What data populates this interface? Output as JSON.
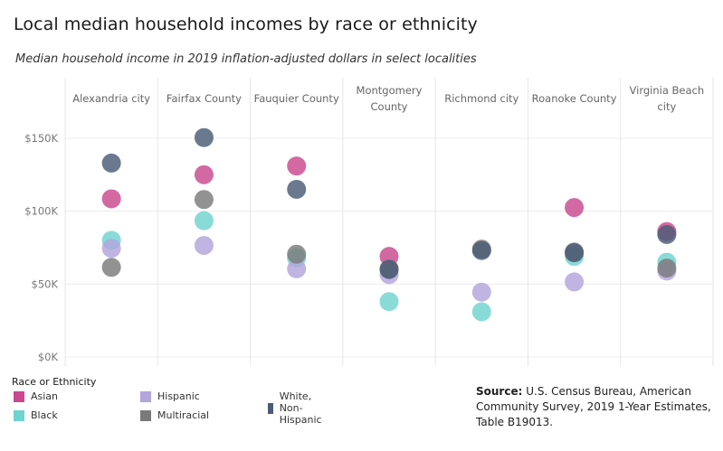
{
  "title": "Local median household incomes by race or ethnicity",
  "subtitle": "Median household income in 2019 inflation-adjusted dollars in select localities",
  "legend": {
    "title": "Race or Ethnicity",
    "items": [
      {
        "label": "Asian",
        "color": "#c9488f"
      },
      {
        "label": "Black",
        "color": "#6fd3d0"
      },
      {
        "label": "Hispanic",
        "color": "#b2a5dc"
      },
      {
        "label": "Multiracial",
        "color": "#7a7a7a"
      },
      {
        "label": "White, Non-Hispanic",
        "color": "#4b5c76"
      }
    ]
  },
  "source": {
    "label": "Source:",
    "text": "U.S. Census Bureau, American Community Survey, 2019 1-Year Estimates, Table B19013."
  },
  "chart_data": {
    "type": "scatter",
    "categories": [
      "Alexandria city",
      "Fairfax County",
      "Fauquier County",
      "Montgomery County",
      "Richmond city",
      "Roanoke County",
      "Virginia Beach city"
    ],
    "y_ticks": [
      "$0K",
      "$50K",
      "$100K",
      "$150K"
    ],
    "ylim": [
      0,
      180000
    ],
    "grid": true,
    "legend_position": "bottom-left",
    "series": [
      {
        "name": "Asian",
        "color": "#c9488f",
        "values": [
          108500,
          125000,
          131000,
          69000,
          null,
          102500,
          86000
        ]
      },
      {
        "name": "Black",
        "color": "#6fd3d0",
        "values": [
          80000,
          93500,
          68000,
          38000,
          31000,
          69000,
          65000
        ]
      },
      {
        "name": "Hispanic",
        "color": "#b2a5dc",
        "values": [
          74500,
          76500,
          60500,
          56500,
          44500,
          51500,
          59000
        ]
      },
      {
        "name": "Multiracial",
        "color": "#7a7a7a",
        "values": [
          61500,
          108000,
          70500,
          60500,
          74000,
          72000,
          61000
        ]
      },
      {
        "name": "White, Non-Hispanic",
        "color": "#4b5c76",
        "values": [
          133000,
          150500,
          115000,
          60000,
          73000,
          71500,
          84000
        ]
      }
    ]
  }
}
